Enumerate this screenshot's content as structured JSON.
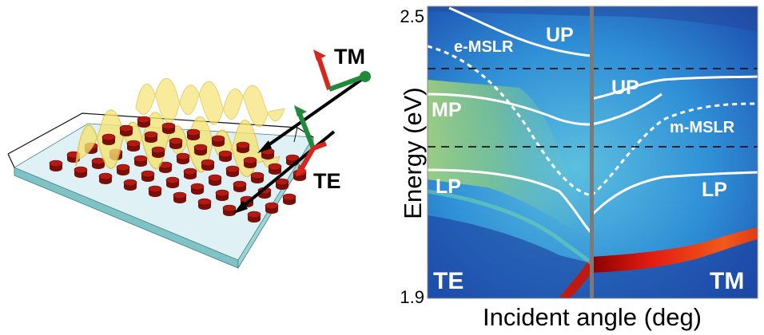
{
  "schematic": {
    "labels": {
      "tm": "TM",
      "te": "TE"
    },
    "colors": {
      "substrate_top": "#dff1f5",
      "substrate_side": "#7fc3c6",
      "pillar": "#b51a12",
      "wave": "#f6e372",
      "arrow_tm": "#d9261c",
      "arrow_te": "#d9261c",
      "arrow_green": "#1f8a3a"
    }
  },
  "plot": {
    "ylabel": "Energy (eV)",
    "xlabel": "Incident angle (deg)",
    "y_ticks": {
      "top": "2.5",
      "bottom": "1.9"
    },
    "ylim": [
      1.9,
      2.5
    ],
    "panel_labels": {
      "left": "TE",
      "right": "TM"
    },
    "branch_labels": {
      "up_left": "UP",
      "up_right": "UP",
      "mp": "MP",
      "lp_left": "LP",
      "lp_right": "LP",
      "e_mslr": "e-MSLR",
      "m_mslr": "m-MSLR"
    },
    "dashed_levels_eV": [
      2.37,
      2.22
    ],
    "colors": {
      "curve": "#ffffff",
      "divider": "#7a7a7a",
      "dashed": "#000000"
    }
  }
}
